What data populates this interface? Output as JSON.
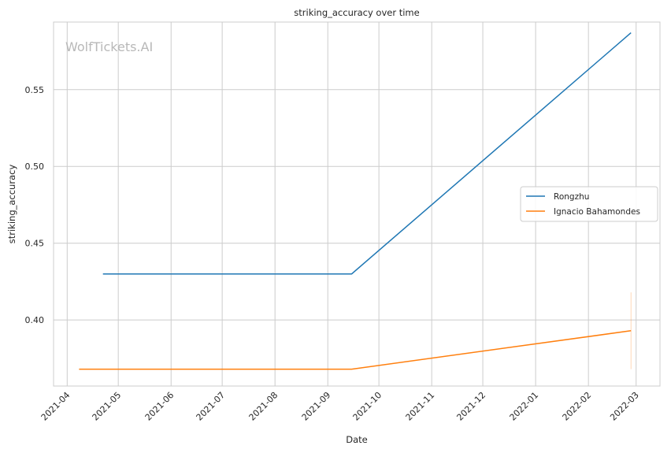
{
  "watermark": "WolfTickets.AI",
  "chart_data": {
    "type": "line",
    "title": "striking_accuracy over time",
    "xlabel": "Date",
    "ylabel": "striking_accuracy",
    "x_ticks": [
      "2021-04",
      "2021-05",
      "2021-06",
      "2021-07",
      "2021-08",
      "2021-09",
      "2021-10",
      "2021-11",
      "2021-12",
      "2022-01",
      "2022-02",
      "2022-03"
    ],
    "y_ticks": [
      "0.40",
      "0.45",
      "0.50",
      "0.55"
    ],
    "xlim": [
      "2021-03-24",
      "2022-03-15"
    ],
    "ylim": [
      0.357,
      0.594
    ],
    "grid": true,
    "legend_position": "center-right",
    "series": [
      {
        "name": "Rongzhu",
        "color": "#1f77b4",
        "x": [
          "2021-04-22",
          "2021-09-15",
          "2022-02-26"
        ],
        "y": [
          0.43,
          0.43,
          0.587
        ]
      },
      {
        "name": "Ignacio Bahamondes",
        "color": "#ff7f0e",
        "x": [
          "2021-04-08",
          "2021-09-15",
          "2022-02-26"
        ],
        "y": [
          0.368,
          0.368,
          0.393
        ]
      }
    ],
    "error_bars": [
      {
        "series": "Ignacio Bahamondes",
        "x": "2022-02-26",
        "low": 0.368,
        "high": 0.418
      }
    ]
  }
}
